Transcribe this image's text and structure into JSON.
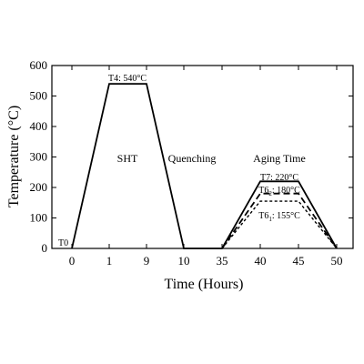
{
  "chart_data": {
    "type": "line",
    "xlabel": "Time (Hours)",
    "ylabel": "Temperature (°C)",
    "x_ticks": [
      "0",
      "1",
      "9",
      "10",
      "35",
      "40",
      "45",
      "50"
    ],
    "ylim": [
      0,
      600
    ],
    "y_ticks": [
      0,
      100,
      200,
      300,
      400,
      500,
      600
    ],
    "series": [
      {
        "name": "T7: 220°C",
        "style": "solid",
        "color": "#000000",
        "points": [
          [
            "0",
            0
          ],
          [
            "1",
            540
          ],
          [
            "9",
            540
          ],
          [
            "10",
            0
          ],
          [
            "35",
            0
          ],
          [
            "40",
            220
          ],
          [
            "45",
            220
          ],
          [
            "50",
            0
          ]
        ]
      },
      {
        "name": "T62: 180°C",
        "style": "dashed",
        "color": "#000000",
        "points": [
          [
            "35",
            0
          ],
          [
            "40",
            180
          ],
          [
            "45",
            180
          ],
          [
            "50",
            0
          ]
        ]
      },
      {
        "name": "T61: 155°C",
        "style": "dotted",
        "color": "#000000",
        "points": [
          [
            "35",
            0
          ],
          [
            "40",
            155
          ],
          [
            "45",
            155
          ],
          [
            "50",
            0
          ]
        ]
      }
    ],
    "annotations": {
      "t0": "T0",
      "t4": "T4: 540°C",
      "sht": "SHT",
      "quenching": "Quenching",
      "aging": "Aging Time",
      "t7": "T7: 220°C",
      "t62_main": "T6",
      "t62_sub": "2",
      "t62_rest": ": 180°C",
      "t61_main": "T6",
      "t61_sub": "1",
      "t61_rest": ": 155°C"
    }
  }
}
